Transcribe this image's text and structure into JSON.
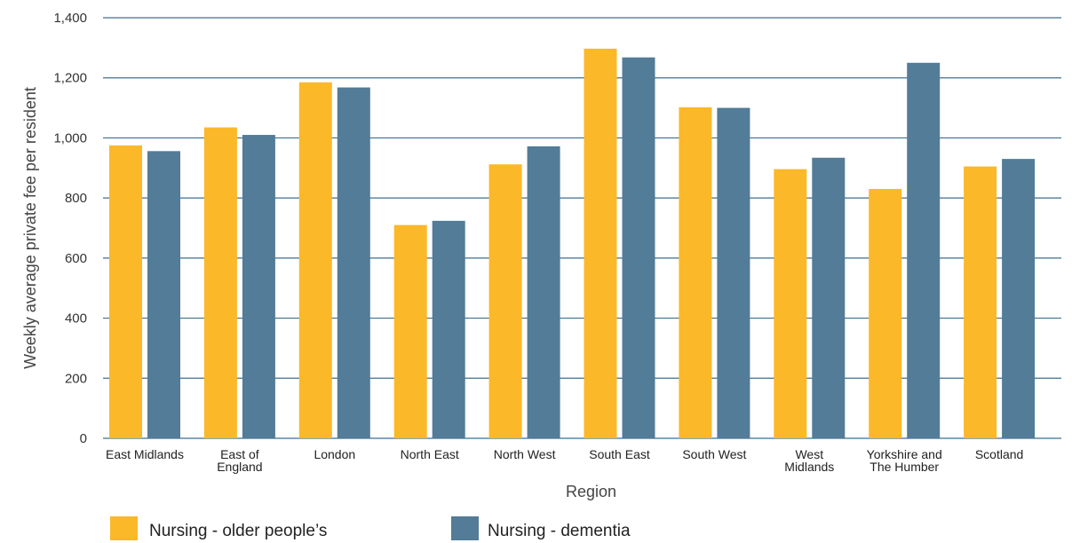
{
  "chart_data": {
    "type": "bar",
    "categories": [
      [
        "East Midlands"
      ],
      [
        "East of",
        "England"
      ],
      [
        "London"
      ],
      [
        "North East"
      ],
      [
        "North West"
      ],
      [
        "South East"
      ],
      [
        "South West"
      ],
      [
        "West",
        "Midlands"
      ],
      [
        "Yorkshire and",
        "The Humber"
      ],
      [
        "Scotland"
      ]
    ],
    "series": [
      {
        "name": "Nursing - older people’s",
        "color": "#FBB829",
        "values": [
          975,
          1035,
          1185,
          710,
          912,
          1297,
          1102,
          896,
          830,
          905
        ]
      },
      {
        "name": "Nursing - dementia",
        "color": "#527C98",
        "values": [
          956,
          1010,
          1168,
          724,
          972,
          1268,
          1100,
          934,
          1250,
          930
        ]
      }
    ],
    "xlabel": "Region",
    "ylabel": "Weekly average private fee per resident",
    "ylim": [
      0,
      1400
    ],
    "yticks": [
      {
        "value": 0,
        "label": "0"
      },
      {
        "value": 200,
        "label": "200"
      },
      {
        "value": 400,
        "label": "400"
      },
      {
        "value": 600,
        "label": "600"
      },
      {
        "value": 800,
        "label": "800"
      },
      {
        "value": 1000,
        "label": "1,000"
      },
      {
        "value": 1200,
        "label": "1,200"
      },
      {
        "value": 1400,
        "label": "1,400"
      }
    ],
    "grid": true,
    "gridColor": "#3F6F8F",
    "legend": "bottom-left"
  }
}
